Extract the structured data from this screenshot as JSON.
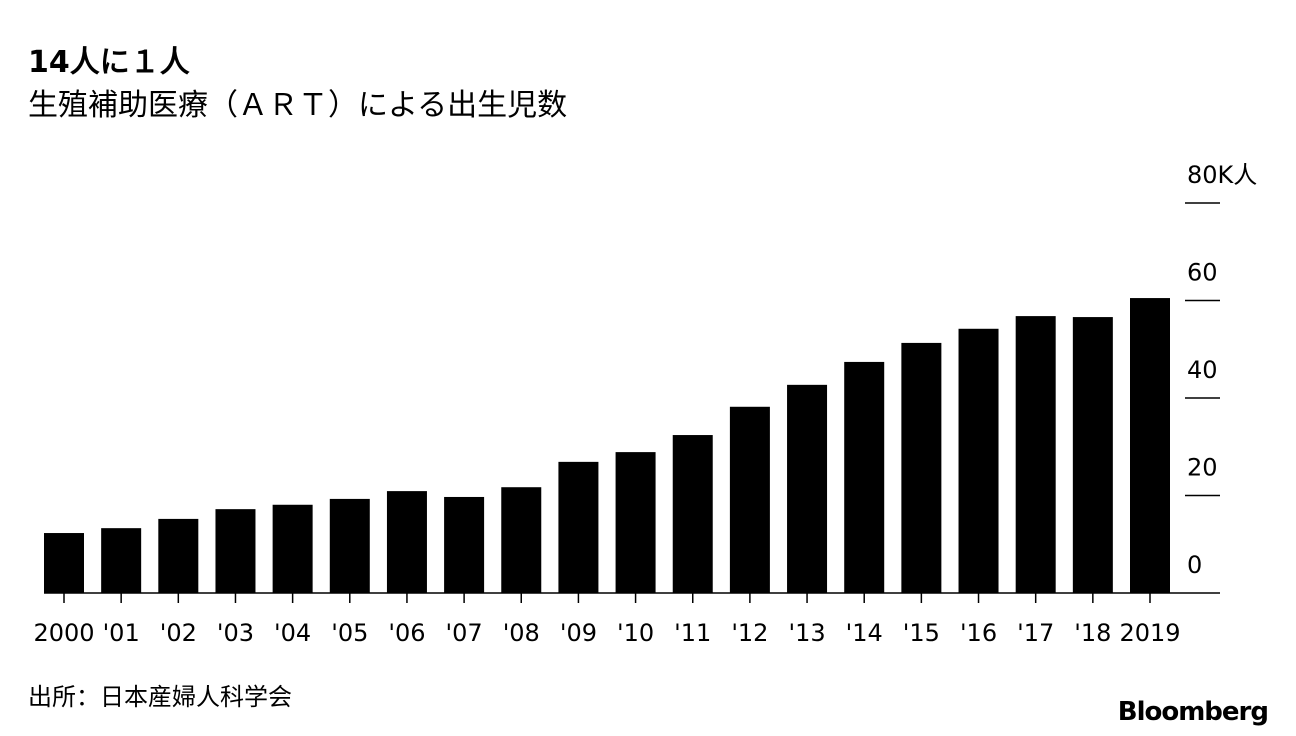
{
  "chart_data": {
    "type": "bar",
    "title": "14人に１人",
    "subtitle": "生殖補助医療（ＡＲＴ）による出生児数",
    "source": "出所：日本産婦人科学会",
    "brand": "Bloomberg",
    "categories": [
      "2000",
      "'01",
      "'02",
      "'03",
      "'04",
      "'05",
      "'06",
      "'07",
      "'08",
      "'09",
      "'10",
      "'11",
      "'12",
      "'13",
      "'14",
      "'15",
      "'16",
      "'17",
      "'18",
      "2019"
    ],
    "values": [
      12.3,
      13.3,
      15.2,
      17.2,
      18.1,
      19.3,
      20.9,
      19.7,
      21.7,
      26.9,
      28.9,
      32.4,
      38.2,
      42.7,
      47.4,
      51.3,
      54.2,
      56.8,
      56.6,
      60.5
    ],
    "color": "#000000",
    "ylim": [
      0,
      80
    ],
    "yticks": [
      0,
      20,
      40,
      60,
      {
        "value": 80,
        "label": "80K人"
      }
    ]
  }
}
